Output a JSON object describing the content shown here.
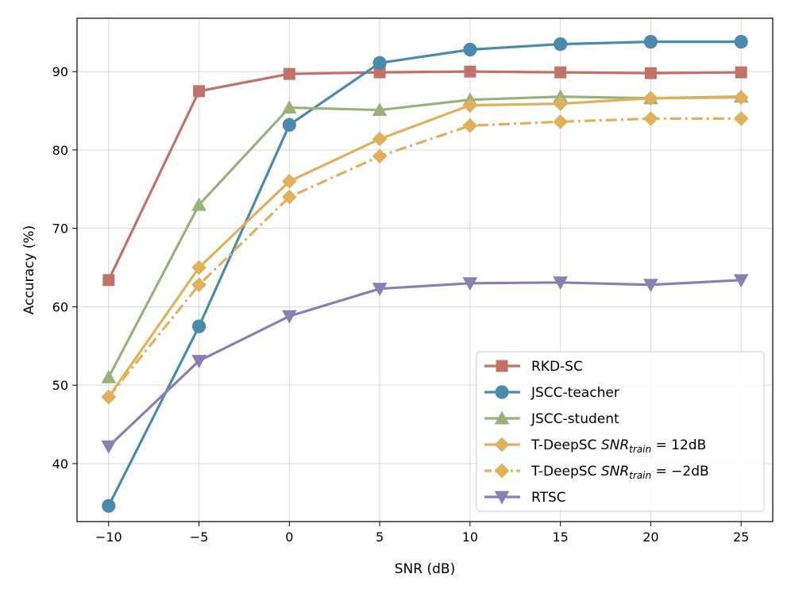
{
  "chart_data": {
    "type": "line",
    "xlabel": "SNR (dB)",
    "ylabel": "Accuracy (%)",
    "x": [
      -10,
      -5,
      0,
      5,
      10,
      15,
      20,
      25
    ],
    "x_tick_labels": [
      "−10",
      "−5",
      "0",
      "5",
      "10",
      "15",
      "20",
      "25"
    ],
    "xlim": [
      -11.75,
      26.75
    ],
    "y_ticks": [
      40,
      50,
      60,
      70,
      80,
      90
    ],
    "ylim": [
      32.6,
      96.8
    ],
    "grid": true,
    "legend_position": "lower-right",
    "series": [
      {
        "name": "RKD-SC",
        "legend": {
          "text": "RKD-SC"
        },
        "color": "#c1736a",
        "marker": "square",
        "dash": "solid",
        "values": [
          63.4,
          87.5,
          89.7,
          89.9,
          90.0,
          89.9,
          89.8,
          89.9
        ]
      },
      {
        "name": "JSCC-teacher",
        "legend": {
          "text": "JSCC-teacher"
        },
        "color": "#4a8aad",
        "marker": "circle",
        "dash": "solid",
        "values": [
          34.6,
          57.5,
          83.2,
          91.1,
          92.8,
          93.5,
          93.8,
          93.8
        ]
      },
      {
        "name": "JSCC-student",
        "legend": {
          "text": "JSCC-student"
        },
        "color": "#98b27a",
        "marker": "triangle-up",
        "dash": "solid",
        "values": [
          51.0,
          73.0,
          85.4,
          85.1,
          86.4,
          86.8,
          86.6,
          86.8
        ]
      },
      {
        "name": "T-DeepSC SNR_train = 12dB",
        "legend": {
          "text": "T-DeepSC ",
          "math": "SNR",
          "sub": "train",
          "suffix": " = 12dB"
        },
        "color": "#e0b05c",
        "marker": "diamond",
        "dash": "solid",
        "values": [
          48.5,
          65.0,
          76.0,
          81.4,
          85.7,
          85.9,
          86.6,
          86.7
        ]
      },
      {
        "name": "T-DeepSC SNR_train = −2dB",
        "legend": {
          "text": "T-DeepSC ",
          "math": "SNR",
          "sub": "train",
          "suffix": " = −2dB"
        },
        "color": "#e0b05c",
        "marker": "diamond",
        "dash": "dashdot",
        "values": [
          48.5,
          62.8,
          74.0,
          79.2,
          83.1,
          83.6,
          84.0,
          84.0
        ]
      },
      {
        "name": "RTSC",
        "legend": {
          "text": "RTSC"
        },
        "color": "#8a7fb1",
        "marker": "triangle-down",
        "dash": "solid",
        "values": [
          42.2,
          53.1,
          58.8,
          62.3,
          63.0,
          63.1,
          62.8,
          63.4
        ]
      }
    ]
  }
}
